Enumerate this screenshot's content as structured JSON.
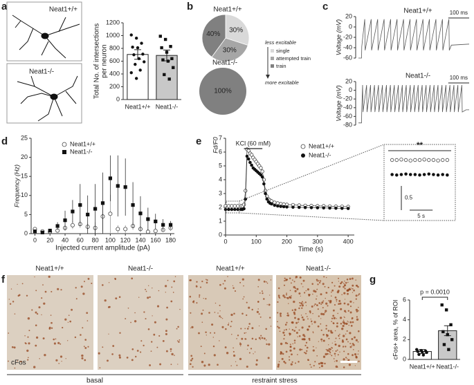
{
  "panel_labels": [
    "a",
    "b",
    "c",
    "d",
    "e",
    "f",
    "g"
  ],
  "neuron_images": {
    "labels": [
      "Neat1+/+",
      "Neat1-/-"
    ]
  },
  "histology": {
    "labels": [
      "Neat1+/+",
      "Neat1-/-",
      "Neat1+/+",
      "Neat1-/-"
    ],
    "stain": "cFos",
    "groups": [
      "basal",
      "restraint stress"
    ]
  },
  "chart_data": [
    {
      "type": "bar",
      "ylabel": [
        "Total No. of intersections",
        "per neuron"
      ],
      "categories": [
        "Neat1+/+",
        "Neat1-/-"
      ],
      "values": [
        705,
        690
      ],
      "errors": [
        75,
        85
      ],
      "colors": [
        "#ffffff",
        "#c8c8c8"
      ],
      "points": [
        [
          1010,
          960,
          880,
          820,
          810,
          710,
          700,
          640,
          590,
          550,
          460,
          420,
          330
        ],
        [
          990,
          940,
          830,
          810,
          740,
          640,
          620,
          600,
          500,
          390,
          320
        ]
      ],
      "point_markers": [
        "circle",
        "square"
      ],
      "ylim": [
        0,
        1200
      ],
      "yticks": [
        0,
        200,
        400,
        600,
        800,
        1000,
        1200
      ]
    },
    {
      "type": "pie",
      "pies": [
        {
          "title": "Neat1+/+",
          "values": [
            30,
            30,
            40
          ],
          "value_labels": [
            "30%",
            "30%",
            "40%"
          ]
        },
        {
          "title": "Neat1-/-",
          "values": [
            0,
            0,
            100
          ],
          "value_labels": [
            null,
            null,
            "100%"
          ]
        }
      ],
      "categories": [
        "single",
        "attempted train",
        "train"
      ],
      "colors": [
        "#d9d9d9",
        "#a6a6a6",
        "#808080"
      ],
      "legend_top": "less excitable",
      "legend_bottom": "more excitable"
    },
    {
      "type": "line",
      "title": "Neat1+/+",
      "ylabel": "Voltage (mV)",
      "color": "#555555",
      "scalebar": {
        "value": 100,
        "label": "100 ms"
      },
      "x": [
        0,
        15,
        16,
        30,
        32,
        61,
        63,
        92,
        94,
        123,
        125,
        154,
        156,
        185,
        187,
        216,
        218,
        247,
        249,
        278,
        280,
        309,
        311,
        340,
        342,
        371,
        373,
        402,
        404,
        433,
        435,
        445,
        530
      ],
      "values": [
        -60,
        -60,
        -38,
        15,
        -45,
        15,
        -45,
        15,
        -45,
        15,
        -45,
        15,
        -45,
        15,
        -45,
        15,
        -45,
        15,
        -45,
        15,
        -45,
        15,
        -45,
        15,
        -45,
        15,
        -45,
        15,
        -45,
        15,
        -45,
        -35,
        -33
      ],
      "xlim": [
        0,
        530
      ],
      "ylim": [
        -60,
        20
      ],
      "yticks": [
        20,
        0,
        -20,
        -40,
        -60
      ]
    },
    {
      "type": "line",
      "title": "Neat1-/-",
      "ylabel": "Voltage (mV)",
      "color": "#555555",
      "scalebar": {
        "value": 100,
        "label": "100 ms"
      },
      "x": [
        0,
        15,
        16,
        20,
        22,
        39,
        41,
        58,
        60,
        77,
        79,
        96,
        98,
        115,
        117,
        134,
        136,
        153,
        155,
        172,
        174,
        191,
        193,
        210,
        212,
        229,
        231,
        248,
        250,
        267,
        269,
        286,
        288,
        305,
        307,
        324,
        326,
        343,
        345,
        362,
        364,
        381,
        383,
        400,
        402,
        419,
        421,
        438,
        440,
        457,
        459,
        476,
        478,
        495,
        497,
        515,
        530
      ],
      "values": [
        -75,
        -75,
        -45,
        12,
        -50,
        12,
        -50,
        12,
        -50,
        12,
        -50,
        12,
        -50,
        12,
        -50,
        12,
        -50,
        12,
        -50,
        12,
        -50,
        12,
        -50,
        12,
        -50,
        12,
        -50,
        12,
        -50,
        12,
        -50,
        12,
        -50,
        12,
        -50,
        12,
        -50,
        12,
        -50,
        12,
        -50,
        12,
        -50,
        12,
        -50,
        12,
        -50,
        12,
        -50,
        12,
        -50,
        12,
        -50,
        12,
        -50,
        -45,
        -45
      ],
      "xlim": [
        0,
        530
      ],
      "ylim": [
        -80,
        20
      ],
      "yticks": [
        20,
        0,
        -20,
        -40,
        -60,
        -80
      ]
    },
    {
      "type": "errorbar",
      "xlabel": "Injected current amplitude (pA)",
      "ylabel": "Frequency (Hz)",
      "legend": "upper left",
      "x": [
        0,
        10,
        20,
        30,
        40,
        50,
        60,
        70,
        80,
        90,
        100,
        110,
        120,
        130,
        140,
        150,
        160,
        170,
        180
      ],
      "series": [
        {
          "name": "Neat1+/+",
          "marker": "open-circle",
          "color": "#888888",
          "values": [
            1.2,
            0.6,
            0.5,
            0.8,
            1.5,
            2.2,
            2.5,
            1.8,
            1.5,
            4.5,
            5.2,
            1.2,
            1.2,
            2.0,
            1.2,
            0.5,
            0.7,
            1.0,
            1.5
          ],
          "errors": [
            0.5,
            0.3,
            0.3,
            0.4,
            0.8,
            1.0,
            1.0,
            1.0,
            1.5,
            4.0,
            5.0,
            1.0,
            1.0,
            1.0,
            0.8,
            0.4,
            0.5,
            0.6,
            0.8
          ]
        },
        {
          "name": "Neat1-/-",
          "marker": "square",
          "color": "#111111",
          "values": [
            0.6,
            0.3,
            0.8,
            2.0,
            3.5,
            5.8,
            7.5,
            5.0,
            6.5,
            8.0,
            14.5,
            12.5,
            12.2,
            7.5,
            5.3,
            3.8,
            3.2,
            2.3,
            2.3
          ],
          "errors": [
            0.3,
            0.2,
            0.4,
            1.0,
            2.5,
            3.0,
            5.5,
            5.0,
            6.5,
            8.0,
            6.0,
            8.0,
            7.5,
            6.0,
            4.5,
            3.0,
            2.0,
            1.5,
            1.0
          ]
        }
      ],
      "xlim": [
        -5,
        185
      ],
      "xticks": [
        0,
        20,
        40,
        60,
        80,
        100,
        120,
        140,
        160,
        180
      ],
      "ylim": [
        0,
        25
      ],
      "yticks": [
        0,
        5,
        10,
        15,
        20,
        25
      ]
    },
    {
      "type": "timecourse",
      "xlabel": "Time (s)",
      "ylabel": "Fd/F0",
      "stimulus": {
        "label": "KCl (60 mM)",
        "start": 60,
        "end": 120
      },
      "x": [
        0,
        10,
        20,
        30,
        40,
        50,
        55,
        60,
        65,
        70,
        75,
        80,
        85,
        90,
        95,
        100,
        105,
        110,
        115,
        120,
        125,
        130,
        135,
        140,
        145,
        150,
        160,
        170,
        180,
        190,
        200,
        220,
        240,
        260,
        280,
        300,
        320,
        340,
        360,
        380,
        400
      ],
      "series": [
        {
          "name": "Neat1+/+",
          "marker": "open-circle",
          "values": [
            2.1,
            2.1,
            2.1,
            2.1,
            2.1,
            2.1,
            2.1,
            2.2,
            3.2,
            6.2,
            6.1,
            5.9,
            5.8,
            5.6,
            5.45,
            5.3,
            5.15,
            5.0,
            4.85,
            4.6,
            4.0,
            3.2,
            2.8,
            2.6,
            2.5,
            2.45,
            2.35,
            2.3,
            2.25,
            2.22,
            2.2,
            2.18,
            2.15,
            2.13,
            2.12,
            2.1,
            2.1,
            2.08,
            2.07,
            2.06,
            2.05
          ]
        },
        {
          "name": "Neat1-/-",
          "marker": "circle",
          "values": [
            1.85,
            1.85,
            1.85,
            1.85,
            1.85,
            1.85,
            1.85,
            1.9,
            2.6,
            5.7,
            5.5,
            5.25,
            5.05,
            4.85,
            4.75,
            4.65,
            4.55,
            4.45,
            4.35,
            4.2,
            3.7,
            3.0,
            2.6,
            2.4,
            2.3,
            2.25,
            2.15,
            2.1,
            2.07,
            2.05,
            2.03,
            2.01,
            2.0,
            1.99,
            1.98,
            1.97,
            1.96,
            1.95,
            1.94,
            1.93,
            1.92
          ]
        }
      ],
      "xlim": [
        0,
        420
      ],
      "xticks": [
        0,
        100,
        200,
        300,
        400
      ],
      "ylim": [
        0,
        7
      ],
      "yticks": [
        0,
        1,
        2,
        3,
        4,
        5,
        6,
        7
      ],
      "inset": {
        "significance": "**",
        "x": [
          1,
          2,
          3,
          4,
          5,
          6,
          7,
          8,
          9,
          10,
          11,
          12,
          13
        ],
        "xlim": [
          0,
          14
        ],
        "ylim": [
          4.3,
          5.8
        ],
        "values": [
          [
            5.55,
            5.55,
            5.56,
            5.55,
            5.54,
            5.55,
            5.55,
            5.56,
            5.55,
            5.55,
            5.54,
            5.55,
            5.55
          ],
          [
            5.25,
            5.24,
            5.25,
            5.26,
            5.25,
            5.25,
            5.24,
            5.25,
            5.26,
            5.25,
            5.24,
            5.25,
            5.24
          ]
        ],
        "scalebar_y": 0.5,
        "scalebar_x": {
          "value": 5,
          "label": "5 s"
        }
      }
    },
    {
      "type": "bar",
      "ylabel": "cFos+ area, % of ROI",
      "annotation": "p = 0.0010",
      "categories": [
        "Neat1+/+",
        "Neat1-/-"
      ],
      "values": [
        0.8,
        2.9
      ],
      "errors": [
        0.2,
        0.5
      ],
      "colors": [
        "#ffffff",
        "#c8c8c8"
      ],
      "points": [
        [
          1.0,
          0.9,
          0.85,
          0.8,
          0.75,
          0.7,
          0.5,
          0.45
        ],
        [
          5.5,
          5.0,
          3.5,
          2.8,
          2.5,
          2.0,
          1.5,
          1.0
        ]
      ],
      "point_markers": [
        "circle",
        "square"
      ],
      "ylim": [
        0,
        6
      ],
      "yticks": [
        0,
        2,
        4,
        6
      ]
    }
  ]
}
